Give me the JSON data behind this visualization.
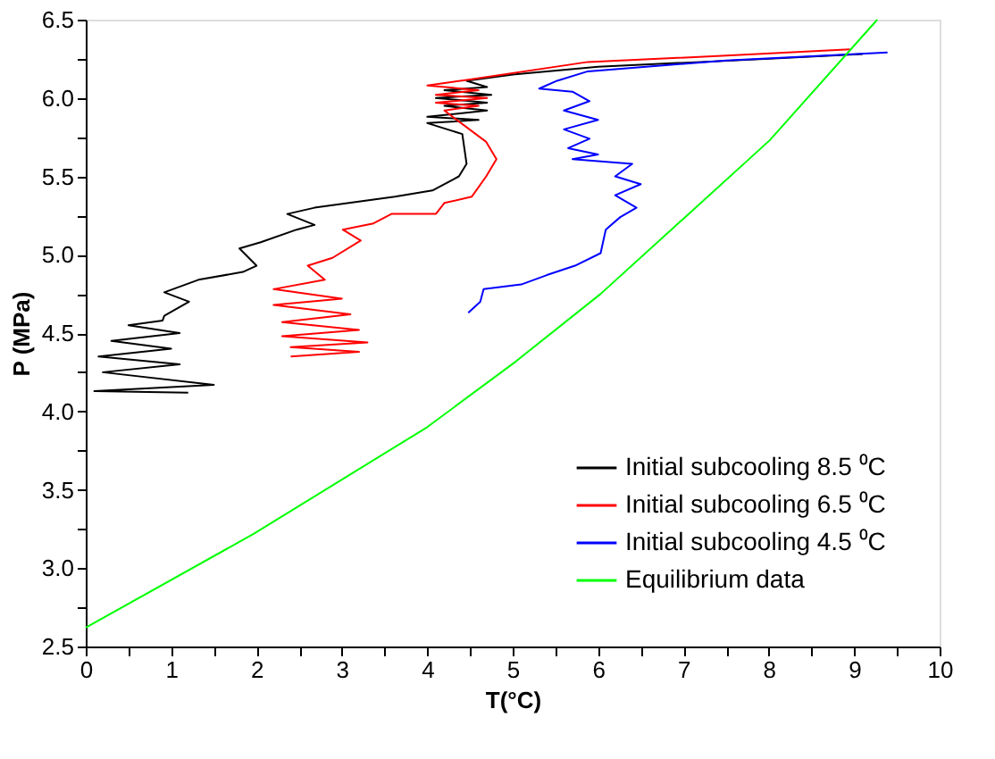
{
  "chart_data": {
    "type": "line",
    "xlabel": "T(°C)",
    "ylabel": "P (MPa)",
    "xlim": [
      0,
      10
    ],
    "ylim": [
      2.5,
      6.5
    ],
    "xticks": [
      0,
      {
        "value": 0.5,
        "label": null
      },
      1,
      {
        "value": 1.5,
        "label": null
      },
      2,
      {
        "value": 2.5,
        "label": null
      },
      3,
      {
        "value": 3.5,
        "label": null
      },
      4,
      {
        "value": 4.5,
        "label": null
      },
      5,
      {
        "value": 5.5,
        "label": null
      },
      6,
      {
        "value": 6.5,
        "label": null
      },
      7,
      {
        "value": 7.5,
        "label": null
      },
      8,
      {
        "value": 8.5,
        "label": null
      },
      9,
      {
        "value": 9.5,
        "label": null
      },
      10
    ],
    "yticks": [
      2.5,
      {
        "value": 2.75,
        "label": null
      },
      {
        "value": 3,
        "label": "3.0"
      },
      {
        "value": 3.25,
        "label": null
      },
      3.5,
      {
        "value": 3.75,
        "label": null
      },
      {
        "value": 4,
        "label": "4.0"
      },
      {
        "value": 4.25,
        "label": null
      },
      4.5,
      {
        "value": 4.75,
        "label": null
      },
      {
        "value": 5,
        "label": "5.0"
      },
      {
        "value": 5.25,
        "label": null
      },
      5.5,
      {
        "value": 5.75,
        "label": null
      },
      {
        "value": 6,
        "label": "6.0"
      },
      {
        "value": 6.25,
        "label": null
      },
      6.5
    ],
    "grid": false,
    "legend": "bottom right",
    "marker": "none",
    "line_style": "solid",
    "series": [
      {
        "name": "Initial subcooling 8.5 ⁰C",
        "color": "#000000",
        "x": [
          9.1,
          8.0,
          6.0,
          5.0,
          4.46,
          4.7,
          4.2,
          4.75,
          4.1,
          4.7,
          4.2,
          4.7,
          4.0,
          4.6,
          4.0,
          4.41,
          4.46,
          4.37,
          4.06,
          3.62,
          2.68,
          2.36,
          2.68,
          2.47,
          2.05,
          1.8,
          2.0,
          1.84,
          1.32,
          0.92,
          1.21,
          0.92,
          0.9,
          0.5,
          1.1,
          0.3,
          1.0,
          0.15,
          1.1,
          0.2,
          1.5,
          0.1,
          1.2
        ],
        "values": [
          6.28,
          6.25,
          6.2,
          6.15,
          6.11,
          6.07,
          6.05,
          6.02,
          6.0,
          5.97,
          5.95,
          5.92,
          5.88,
          5.86,
          5.84,
          5.77,
          5.58,
          5.5,
          5.41,
          5.37,
          5.3,
          5.26,
          5.19,
          5.16,
          5.08,
          5.04,
          4.93,
          4.89,
          4.84,
          4.76,
          4.7,
          4.61,
          4.58,
          4.55,
          4.5,
          4.45,
          4.4,
          4.35,
          4.3,
          4.25,
          4.17,
          4.13,
          4.12
        ]
      },
      {
        "name": "Initial subcooling 6.5 ⁰C",
        "color": "#ff0000",
        "x": [
          8.95,
          7.5,
          5.88,
          4.52,
          4.0,
          4.6,
          4.1,
          4.7,
          4.1,
          4.6,
          4.2,
          4.69,
          4.81,
          4.69,
          4.52,
          4.2,
          4.1,
          3.58,
          3.37,
          3.01,
          3.22,
          2.89,
          2.6,
          2.8,
          2.2,
          3.0,
          2.2,
          3.1,
          2.3,
          3.2,
          2.3,
          3.3,
          2.4,
          3.2,
          2.4
        ],
        "values": [
          6.31,
          6.27,
          6.23,
          6.12,
          6.08,
          6.05,
          6.02,
          6.0,
          5.97,
          5.95,
          5.92,
          5.72,
          5.61,
          5.5,
          5.37,
          5.33,
          5.26,
          5.26,
          5.2,
          5.16,
          5.09,
          4.98,
          4.93,
          4.84,
          4.78,
          4.72,
          4.68,
          4.62,
          4.57,
          4.52,
          4.48,
          4.44,
          4.41,
          4.38,
          4.35
        ]
      },
      {
        "name": "Initial subcooling 4.5 ⁰C",
        "color": "#0000ff",
        "x": [
          9.39,
          7.5,
          5.88,
          5.52,
          5.31,
          5.7,
          5.9,
          5.6,
          6.0,
          5.6,
          5.9,
          5.65,
          6.0,
          5.7,
          6.4,
          6.2,
          6.5,
          6.2,
          6.45,
          6.26,
          6.09,
          6.03,
          5.73,
          5.4,
          5.1,
          4.66,
          4.62,
          4.48
        ],
        "values": [
          6.29,
          6.24,
          6.17,
          6.11,
          6.06,
          6.04,
          5.98,
          5.92,
          5.86,
          5.8,
          5.74,
          5.68,
          5.64,
          5.61,
          5.58,
          5.5,
          5.45,
          5.38,
          5.3,
          5.24,
          5.16,
          5.01,
          4.93,
          4.87,
          4.81,
          4.78,
          4.7,
          4.63
        ]
      },
      {
        "name": "Equilibrium data",
        "color": "#00ff00",
        "x": [
          0,
          1.97,
          4.0,
          5.04,
          6.03,
          8.01,
          9.27
        ],
        "values": [
          2.62,
          3.22,
          3.9,
          4.32,
          4.75,
          5.73,
          6.5
        ]
      }
    ]
  }
}
